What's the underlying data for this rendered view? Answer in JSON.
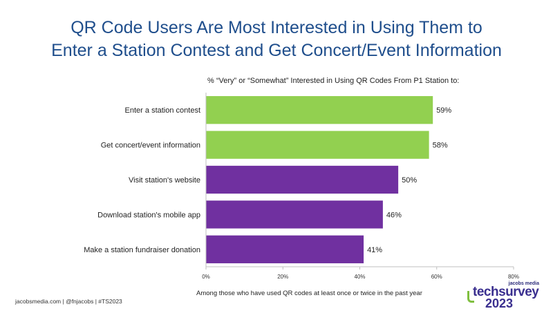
{
  "chart_data": {
    "type": "bar",
    "orientation": "horizontal",
    "title": "QR Code Users Are Most Interested in Using Them to Enter a Station Contest and Get Concert/Event Information",
    "title_lines": [
      "QR Code Users Are Most Interested in Using Them to",
      "Enter a Station Contest and Get Concert/Event Information"
    ],
    "subtitle": "% “Very” or “Somewhat” Interested in Using QR Codes From P1 Station to:",
    "categories": [
      "Enter a station contest",
      "Get concert/event information",
      "Visit station's website",
      "Download station's mobile app",
      "Make a station fundraiser donation"
    ],
    "values": [
      59,
      58,
      50,
      46,
      41
    ],
    "data_labels": [
      "59%",
      "58%",
      "50%",
      "46%",
      "41%"
    ],
    "bar_colors": [
      "#92d050",
      "#92d050",
      "#7030a0",
      "#7030a0",
      "#7030a0"
    ],
    "xlim": [
      0,
      80
    ],
    "xticks": [
      0,
      20,
      40,
      60,
      80
    ],
    "xtick_labels": [
      "0%",
      "20%",
      "40%",
      "60%",
      "80%"
    ],
    "xlabel": "Among those who have used QR codes at least once or twice in the past year",
    "grid": false
  },
  "footer": {
    "left": "jacobsmedia.com   |   @fnjacobs   |   #TS2023"
  },
  "logo": {
    "top": "jacobs media",
    "main": "techsurvey",
    "year": "2023"
  },
  "colors": {
    "title": "#1f4e8c",
    "green": "#92d050",
    "purple": "#7030a0"
  }
}
